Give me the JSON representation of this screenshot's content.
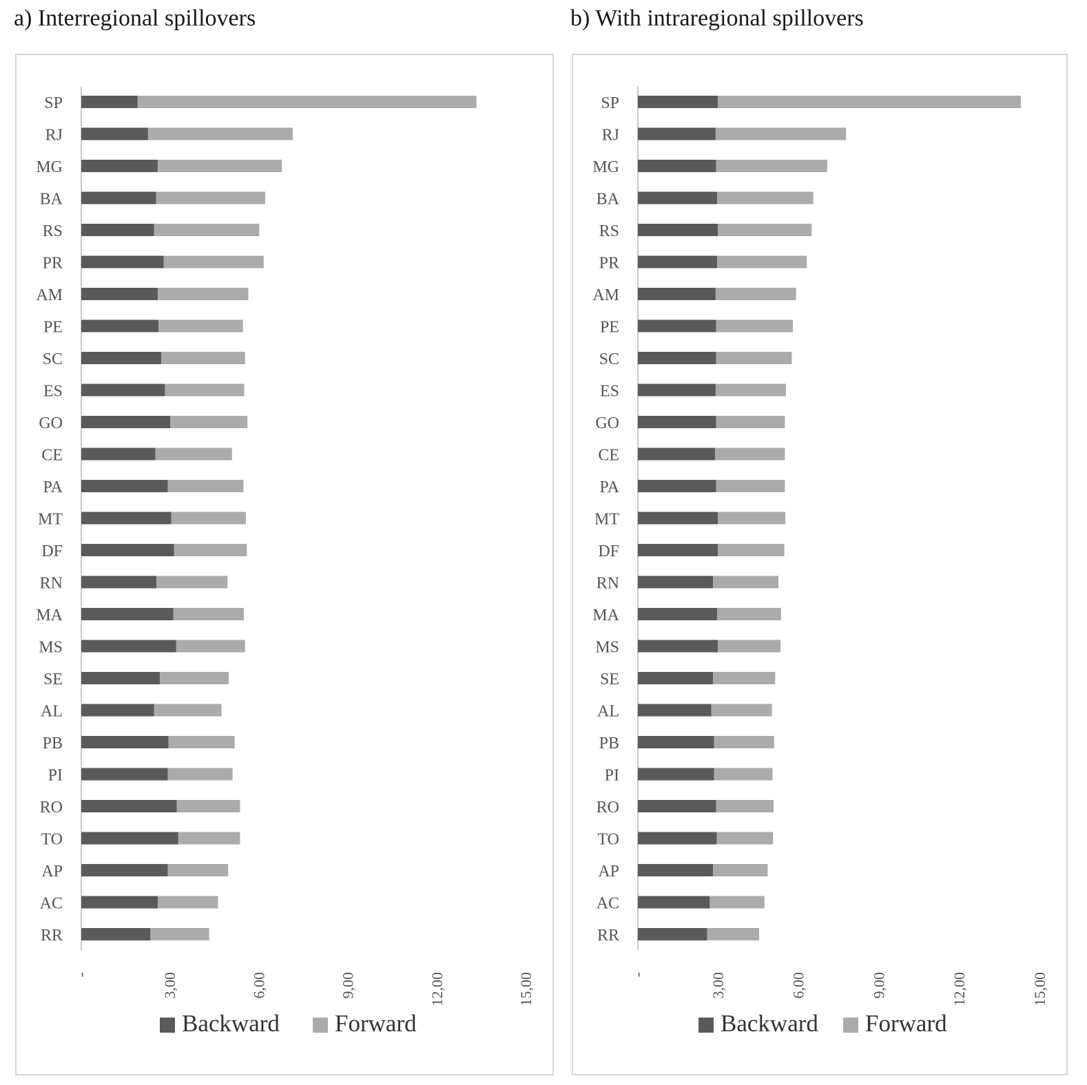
{
  "panels": [
    {
      "title": "a) Interregional spillovers"
    },
    {
      "title": "b) With intraregional spillovers"
    }
  ],
  "colors": {
    "backward": "#5a5a5a",
    "forward": "#ababab",
    "axis": "#c8c8c8",
    "frame": "#d4d4d4"
  },
  "chart_data": [
    {
      "type": "bar",
      "orientation": "horizontal",
      "stacked": true,
      "title": "a) Interregional spillovers",
      "categories": [
        "SP",
        "RJ",
        "MG",
        "BA",
        "RS",
        "PR",
        "AM",
        "PE",
        "SC",
        "ES",
        "GO",
        "CE",
        "PA",
        "MT",
        "DF",
        "RN",
        "MA",
        "MS",
        "SE",
        "AL",
        "PB",
        "PI",
        "RO",
        "TO",
        "AP",
        "AC",
        "RR"
      ],
      "series": [
        {
          "name": "Backward",
          "values": [
            1.9,
            2.25,
            2.58,
            2.52,
            2.45,
            2.78,
            2.58,
            2.6,
            2.7,
            2.82,
            3.0,
            2.5,
            2.92,
            3.03,
            3.13,
            2.53,
            3.1,
            3.2,
            2.65,
            2.45,
            2.94,
            2.92,
            3.22,
            3.27,
            2.92,
            2.58,
            2.33
          ]
        },
        {
          "name": "Forward",
          "values": [
            11.42,
            4.88,
            4.18,
            3.68,
            3.55,
            3.37,
            3.05,
            2.85,
            2.82,
            2.67,
            2.6,
            2.58,
            2.55,
            2.52,
            2.45,
            2.4,
            2.38,
            2.32,
            2.32,
            2.28,
            2.23,
            2.18,
            2.13,
            2.08,
            2.03,
            2.03,
            1.98
          ]
        }
      ],
      "ticks": [
        "-",
        "3,00",
        "6,00",
        "9,00",
        "12,00",
        "15,00"
      ],
      "xlim": [
        0,
        15
      ],
      "grid": false,
      "legend": "bottom"
    },
    {
      "type": "bar",
      "orientation": "horizontal",
      "stacked": true,
      "title": "b) With intraregional spillovers",
      "categories": [
        "SP",
        "RJ",
        "MG",
        "BA",
        "RS",
        "PR",
        "AM",
        "PE",
        "SC",
        "ES",
        "GO",
        "CE",
        "PA",
        "MT",
        "DF",
        "RN",
        "MA",
        "MS",
        "SE",
        "AL",
        "PB",
        "PI",
        "RO",
        "TO",
        "AP",
        "AC",
        "RR"
      ],
      "series": [
        {
          "name": "Backward",
          "values": [
            2.98,
            2.9,
            2.92,
            2.96,
            2.98,
            2.96,
            2.9,
            2.92,
            2.92,
            2.9,
            2.92,
            2.88,
            2.92,
            2.98,
            2.98,
            2.8,
            2.96,
            2.98,
            2.8,
            2.74,
            2.84,
            2.84,
            2.92,
            2.94,
            2.8,
            2.68,
            2.58
          ]
        },
        {
          "name": "Forward",
          "values": [
            11.3,
            4.86,
            4.14,
            3.58,
            3.5,
            3.34,
            3.0,
            2.86,
            2.82,
            2.62,
            2.56,
            2.6,
            2.56,
            2.52,
            2.48,
            2.44,
            2.38,
            2.34,
            2.32,
            2.26,
            2.24,
            2.18,
            2.14,
            2.1,
            2.04,
            2.04,
            1.94
          ]
        }
      ],
      "ticks": [
        "-",
        "3,00",
        "6,00",
        "9,00",
        "12,00",
        "15,00"
      ],
      "xlim": [
        0,
        15
      ],
      "grid": false,
      "legend": "bottom"
    }
  ]
}
